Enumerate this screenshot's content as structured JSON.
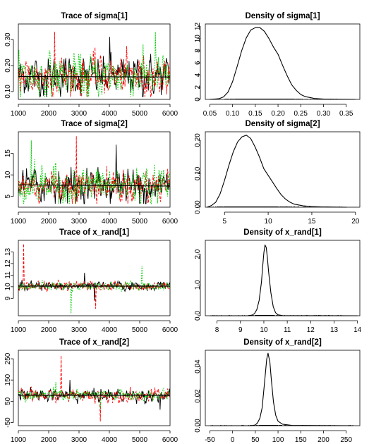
{
  "colors": {
    "chain1": "#000000",
    "chain2": "#ff0000",
    "chain3": "#00cd00",
    "smooth": "#000000"
  },
  "chart_data": [
    {
      "type": "line",
      "title": "Trace of sigma[1]",
      "x_ticks": [
        1000,
        2000,
        3000,
        4000,
        5000,
        6000
      ],
      "y_ticks": [
        0.1,
        0.2,
        0.3
      ],
      "y_tick_labels": [
        "0.10",
        "0.20",
        "0.30"
      ],
      "xlim": [
        1000,
        6000
      ],
      "ylim": [
        0.07,
        0.36
      ],
      "series": [
        {
          "mean": 0.16,
          "sd": 0.035,
          "lo": 0.08,
          "hi": 0.31
        },
        {
          "mean": 0.16,
          "sd": 0.035,
          "lo": 0.08,
          "hi": 0.33
        },
        {
          "mean": 0.16,
          "sd": 0.038,
          "lo": 0.08,
          "hi": 0.33
        }
      ],
      "smooth_line": [
        [
          1000,
          0.158
        ],
        [
          6000,
          0.156
        ]
      ]
    },
    {
      "type": "area",
      "title": "Density of sigma[1]",
      "x_ticks": [
        0.05,
        0.1,
        0.15,
        0.2,
        0.25,
        0.3,
        0.35
      ],
      "x_tick_labels": [
        "0.05",
        "0.10",
        "0.15",
        "0.20",
        "0.25",
        "0.30",
        "0.35"
      ],
      "y_ticks": [
        0,
        2,
        4,
        6,
        8,
        10,
        12
      ],
      "xlim": [
        0.04,
        0.38
      ],
      "ylim": [
        0,
        12.4
      ],
      "density": [
        [
          0.05,
          0
        ],
        [
          0.07,
          0.1
        ],
        [
          0.08,
          0.4
        ],
        [
          0.09,
          1.2
        ],
        [
          0.1,
          2.9
        ],
        [
          0.11,
          5.4
        ],
        [
          0.12,
          8.0
        ],
        [
          0.13,
          10.1
        ],
        [
          0.14,
          11.4
        ],
        [
          0.15,
          11.8
        ],
        [
          0.16,
          11.8
        ],
        [
          0.17,
          11.2
        ],
        [
          0.18,
          10.0
        ],
        [
          0.19,
          8.6
        ],
        [
          0.2,
          7.4
        ],
        [
          0.21,
          5.6
        ],
        [
          0.22,
          3.9
        ],
        [
          0.23,
          2.4
        ],
        [
          0.24,
          1.5
        ],
        [
          0.25,
          0.8
        ],
        [
          0.26,
          0.45
        ],
        [
          0.28,
          0.15
        ],
        [
          0.3,
          0.05
        ],
        [
          0.32,
          0.02
        ],
        [
          0.37,
          0
        ]
      ],
      "rug": {
        "lo": 0.08,
        "hi": 0.33
      }
    },
    {
      "type": "line",
      "title": "Trace of sigma[2]",
      "x_ticks": [
        1000,
        2000,
        3000,
        4000,
        5000,
        6000
      ],
      "y_ticks": [
        5,
        10,
        15
      ],
      "xlim": [
        1000,
        6000
      ],
      "ylim": [
        2.5,
        20
      ],
      "series": [
        {
          "mean": 7.6,
          "sd": 1.8,
          "lo": 3.3,
          "hi": 17.0
        },
        {
          "mean": 7.6,
          "sd": 1.8,
          "lo": 3.3,
          "hi": 19.0
        },
        {
          "mean": 7.6,
          "sd": 2.0,
          "lo": 3.3,
          "hi": 18.0
        }
      ],
      "smooth_line": [
        [
          1000,
          7.7
        ],
        [
          6000,
          7.4
        ]
      ]
    },
    {
      "type": "area",
      "title": "Density of sigma[2]",
      "x_ticks": [
        5,
        10,
        15,
        20
      ],
      "y_ticks": [
        0.0,
        0.1,
        0.2
      ],
      "y_tick_labels": [
        "0.00",
        "0.10",
        "0.20"
      ],
      "xlim": [
        2.8,
        20.5
      ],
      "ylim": [
        0,
        0.225
      ],
      "density": [
        [
          3,
          0
        ],
        [
          3.5,
          0.005
        ],
        [
          4,
          0.015
        ],
        [
          4.5,
          0.04
        ],
        [
          5,
          0.08
        ],
        [
          5.5,
          0.125
        ],
        [
          6,
          0.165
        ],
        [
          6.5,
          0.195
        ],
        [
          7,
          0.21
        ],
        [
          7.5,
          0.215
        ],
        [
          8,
          0.205
        ],
        [
          8.5,
          0.18
        ],
        [
          9,
          0.15
        ],
        [
          9.5,
          0.115
        ],
        [
          10,
          0.095
        ],
        [
          10.5,
          0.075
        ],
        [
          11,
          0.055
        ],
        [
          11.5,
          0.037
        ],
        [
          12,
          0.024
        ],
        [
          12.5,
          0.015
        ],
        [
          13,
          0.009
        ],
        [
          14,
          0.004
        ],
        [
          15,
          0.002
        ],
        [
          16,
          0.001
        ],
        [
          19,
          0
        ]
      ],
      "rug": {
        "lo": 3.3,
        "hi": 18.5
      }
    },
    {
      "type": "line",
      "title": "Trace of x_rand[1]",
      "x_ticks": [
        1000,
        2000,
        3000,
        4000,
        5000,
        6000
      ],
      "y_ticks": [
        9,
        10,
        11,
        12,
        13
      ],
      "xlim": [
        1000,
        6000
      ],
      "ylim": [
        7.5,
        14
      ],
      "series": [
        {
          "mean": 10.05,
          "sd": 0.18,
          "lo": 8.8,
          "hi": 11.2
        },
        {
          "mean": 10.05,
          "sd": 0.18,
          "lo": 8.1,
          "hi": 13.7
        },
        {
          "mean": 10.05,
          "sd": 0.17,
          "lo": 7.7,
          "hi": 11.8
        }
      ],
      "smooth_line": [
        [
          1000,
          10.05
        ],
        [
          6000,
          10.05
        ]
      ]
    },
    {
      "type": "area",
      "title": "Density of x_rand[1]",
      "x_ticks": [
        8,
        9,
        10,
        11,
        12,
        13,
        14
      ],
      "y_ticks": [
        0.0,
        1.0,
        2.0
      ],
      "y_tick_labels": [
        "0.0",
        "1.0",
        "2.0"
      ],
      "xlim": [
        7.5,
        14.1
      ],
      "ylim": [
        0,
        2.45
      ],
      "density": [
        [
          7.7,
          0
        ],
        [
          9.3,
          0
        ],
        [
          9.5,
          0.02
        ],
        [
          9.6,
          0.07
        ],
        [
          9.7,
          0.2
        ],
        [
          9.8,
          0.5
        ],
        [
          9.9,
          1.1
        ],
        [
          9.95,
          1.6
        ],
        [
          10.0,
          2.05
        ],
        [
          10.05,
          2.3
        ],
        [
          10.1,
          2.22
        ],
        [
          10.15,
          1.9
        ],
        [
          10.2,
          1.45
        ],
        [
          10.3,
          0.75
        ],
        [
          10.4,
          0.3
        ],
        [
          10.5,
          0.1
        ],
        [
          10.6,
          0.03
        ],
        [
          10.8,
          0.005
        ],
        [
          14.0,
          0
        ]
      ],
      "rug": {
        "lo": 7.7,
        "hi": 13.8
      }
    },
    {
      "type": "line",
      "title": "Trace of x_rand[2]",
      "x_ticks": [
        1000,
        2000,
        3000,
        4000,
        5000,
        6000
      ],
      "y_ticks": [
        -50,
        50,
        150,
        250
      ],
      "xlim": [
        1000,
        6000
      ],
      "ylim": [
        -65,
        290
      ],
      "series": [
        {
          "mean": 78,
          "sd": 14,
          "lo": 10,
          "hi": 150
        },
        {
          "mean": 78,
          "sd": 14,
          "lo": -45,
          "hi": 265
        },
        {
          "mean": 78,
          "sd": 13,
          "lo": 10,
          "hi": 140
        }
      ],
      "smooth_line": [
        [
          1000,
          78
        ],
        [
          6000,
          78
        ]
      ]
    },
    {
      "type": "area",
      "title": "Density of x_rand[2]",
      "x_ticks": [
        -50,
        0,
        50,
        100,
        150,
        200,
        250
      ],
      "y_ticks": [
        0.0,
        0.02,
        0.04
      ],
      "y_tick_labels": [
        "0.00",
        "0.02",
        "0.04"
      ],
      "xlim": [
        -60,
        280
      ],
      "ylim": [
        0,
        0.051
      ],
      "density": [
        [
          -50,
          0
        ],
        [
          40,
          0
        ],
        [
          50,
          0.0005
        ],
        [
          55,
          0.002
        ],
        [
          60,
          0.005
        ],
        [
          65,
          0.012
        ],
        [
          70,
          0.028
        ],
        [
          75,
          0.045
        ],
        [
          78,
          0.049
        ],
        [
          82,
          0.043
        ],
        [
          85,
          0.032
        ],
        [
          90,
          0.016
        ],
        [
          95,
          0.007
        ],
        [
          100,
          0.003
        ],
        [
          110,
          0.001
        ],
        [
          130,
          0.0002
        ],
        [
          265,
          0
        ]
      ],
      "rug": {
        "lo": -45,
        "hi": 265
      }
    }
  ]
}
